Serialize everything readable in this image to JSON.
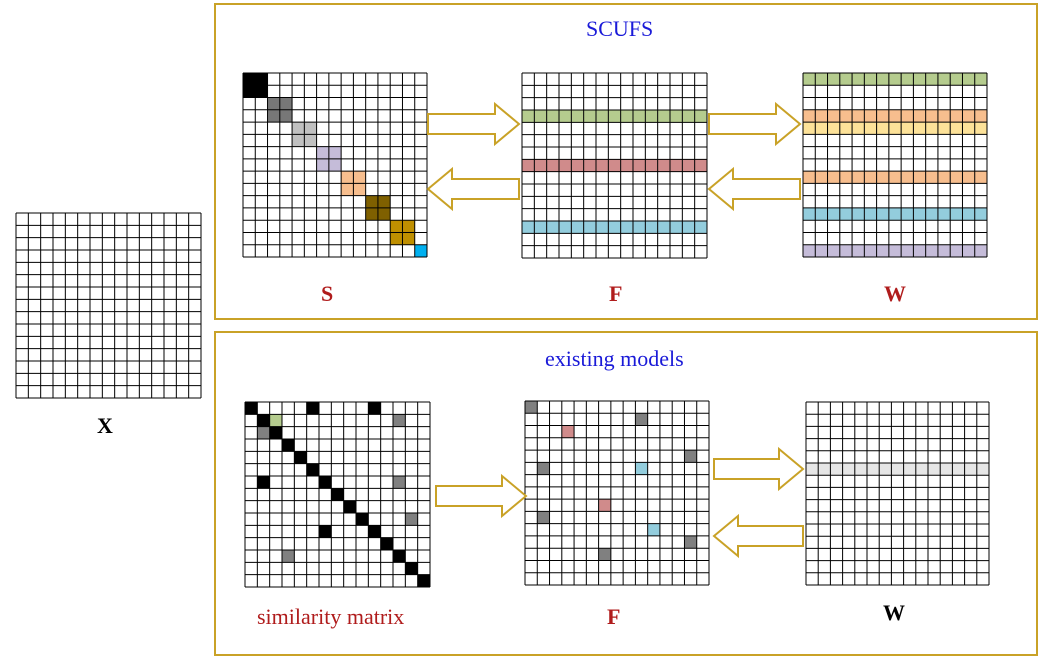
{
  "top_panel": {
    "title": "SCUFS"
  },
  "bottom_panel": {
    "title": "existing models"
  },
  "labels": {
    "x": "X",
    "s": "S",
    "f_top": "F",
    "w_top": "W",
    "similarity": "similarity matrix",
    "f_bottom": "F",
    "w_bottom": "W"
  },
  "colors": {
    "panel_border": "#c9a227",
    "arrow": "#c9a227",
    "title_blue": "#1a1ad8",
    "label_red": "#b01c1c",
    "green": "#b5cc8e",
    "red": "#d08b8b",
    "blue": "#93cddd",
    "orange": "#f7be8e",
    "yellow": "#fde299",
    "lavender": "#c5bcd9",
    "gray": "#808080"
  }
}
